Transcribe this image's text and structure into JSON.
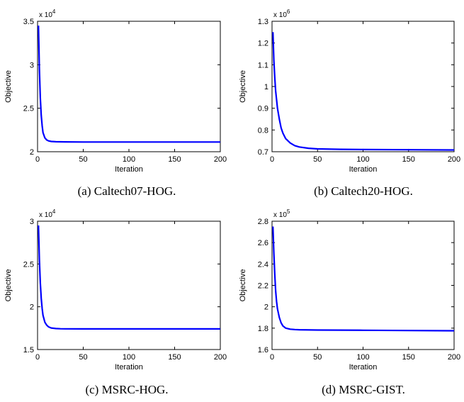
{
  "chart_data": [
    {
      "type": "line",
      "caption": "(a) Caltech07-HOG.",
      "xlabel": "Iteration",
      "ylabel": "Objective",
      "exponent_base": "x 10",
      "exponent_power": "4",
      "xlim": [
        0,
        200
      ],
      "ylim": [
        2.0,
        3.5
      ],
      "xticks": [
        "0",
        "50",
        "100",
        "150",
        "200"
      ],
      "yticks": [
        "2",
        "2.5",
        "3",
        "3.5"
      ],
      "ytick_values": [
        2.0,
        2.5,
        3.0,
        3.5
      ],
      "line_color": "#0000ff",
      "series": [
        {
          "x": [
            1,
            2,
            3,
            4,
            5,
            6,
            8,
            10,
            12,
            15,
            20,
            30,
            50,
            100,
            150,
            200
          ],
          "y": [
            3.45,
            2.95,
            2.62,
            2.42,
            2.3,
            2.22,
            2.16,
            2.135,
            2.125,
            2.118,
            2.115,
            2.113,
            2.112,
            2.112,
            2.112,
            2.112
          ]
        }
      ]
    },
    {
      "type": "line",
      "caption": "(b) Caltech20-HOG.",
      "xlabel": "Iteration",
      "ylabel": "Objective",
      "exponent_base": "x 10",
      "exponent_power": "6",
      "xlim": [
        0,
        200
      ],
      "ylim": [
        0.7,
        1.3
      ],
      "xticks": [
        "0",
        "50",
        "100",
        "150",
        "200"
      ],
      "yticks": [
        "0.7",
        "0.8",
        "0.9",
        "1",
        "1.1",
        "1.2",
        "1.3"
      ],
      "ytick_values": [
        0.7,
        0.8,
        0.9,
        1.0,
        1.1,
        1.2,
        1.3
      ],
      "line_color": "#0000ff",
      "series": [
        {
          "x": [
            1,
            2,
            3,
            4,
            6,
            8,
            10,
            12,
            15,
            20,
            25,
            30,
            40,
            50,
            75,
            100,
            150,
            200
          ],
          "y": [
            1.25,
            1.12,
            1.04,
            0.98,
            0.9,
            0.85,
            0.81,
            0.785,
            0.76,
            0.74,
            0.728,
            0.722,
            0.716,
            0.713,
            0.711,
            0.71,
            0.709,
            0.708
          ]
        }
      ]
    },
    {
      "type": "line",
      "caption": "(c) MSRC-HOG.",
      "xlabel": "Iteration",
      "ylabel": "Objective",
      "exponent_base": "x 10",
      "exponent_power": "4",
      "xlim": [
        0,
        200
      ],
      "ylim": [
        1.5,
        3.0
      ],
      "xticks": [
        "0",
        "50",
        "100",
        "150",
        "200"
      ],
      "yticks": [
        "1.5",
        "2",
        "2.5",
        "3"
      ],
      "ytick_values": [
        1.5,
        2.0,
        2.5,
        3.0
      ],
      "line_color": "#0000ff",
      "series": [
        {
          "x": [
            1,
            2,
            3,
            4,
            5,
            6,
            8,
            10,
            12,
            15,
            20,
            25,
            30,
            50,
            100,
            150,
            200
          ],
          "y": [
            2.95,
            2.55,
            2.28,
            2.1,
            1.98,
            1.9,
            1.82,
            1.785,
            1.765,
            1.752,
            1.745,
            1.743,
            1.742,
            1.741,
            1.741,
            1.741,
            1.741
          ]
        }
      ]
    },
    {
      "type": "line",
      "caption": "(d) MSRC-GIST.",
      "xlabel": "Iteration",
      "ylabel": "Objective",
      "exponent_base": "x 10",
      "exponent_power": "5",
      "xlim": [
        0,
        200
      ],
      "ylim": [
        1.6,
        2.8
      ],
      "xticks": [
        "0",
        "50",
        "100",
        "150",
        "200"
      ],
      "yticks": [
        "1.6",
        "1.8",
        "2",
        "2.2",
        "2.4",
        "2.6",
        "2.8"
      ],
      "ytick_values": [
        1.6,
        1.8,
        2.0,
        2.2,
        2.4,
        2.6,
        2.8
      ],
      "line_color": "#0000ff",
      "series": [
        {
          "x": [
            1,
            2,
            3,
            4,
            5,
            6,
            8,
            10,
            12,
            15,
            20,
            25,
            30,
            50,
            100,
            150,
            200
          ],
          "y": [
            2.75,
            2.5,
            2.3,
            2.15,
            2.05,
            1.98,
            1.9,
            1.85,
            1.82,
            1.8,
            1.79,
            1.787,
            1.785,
            1.782,
            1.78,
            1.778,
            1.776
          ]
        }
      ]
    }
  ]
}
